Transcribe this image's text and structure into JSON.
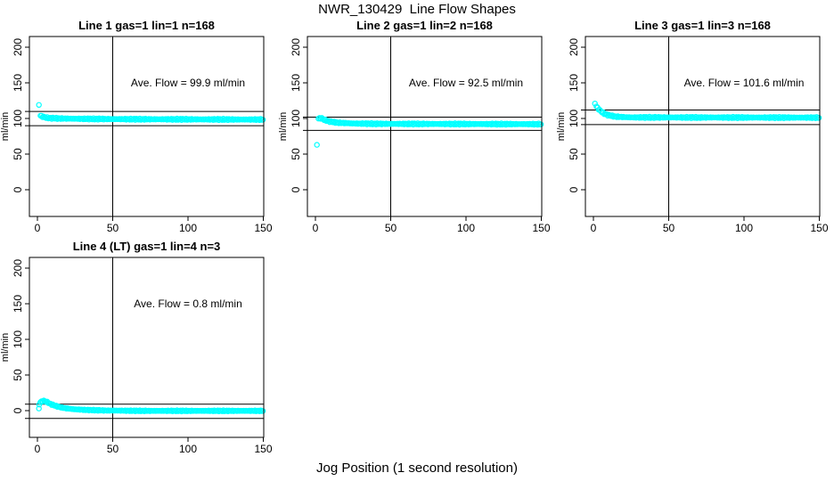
{
  "figure": {
    "title": "NWR_130429  Line Flow Shapes",
    "xlabel": "Jog Position (1 second resolution)",
    "point_color": "#00ffff",
    "line_color": "#000000"
  },
  "chart_data": [
    {
      "type": "scatter",
      "title": "Line 1 gas=1 lin=1 n=168",
      "annotation": "Ave. Flow =  99.9  ml/min",
      "ave_flow_ml_min": 99.9,
      "ylabel": "ml/min",
      "xticks": [
        0,
        50,
        100,
        150
      ],
      "yticks": [
        0,
        50,
        100,
        150,
        200
      ],
      "xlim": [
        -5,
        151
      ],
      "ylim": [
        -38,
        217
      ],
      "vline_x": 50,
      "hlines_y": [
        109.9,
        89.9
      ],
      "isolated_points": [
        [
          1,
          119
        ]
      ],
      "band_points": [
        [
          2,
          104
        ],
        [
          3,
          103
        ],
        [
          5,
          101.5
        ],
        [
          8,
          100.5
        ],
        [
          15,
          100
        ],
        [
          30,
          99.5
        ],
        [
          60,
          99
        ],
        [
          150,
          98.5
        ]
      ],
      "band_step": 0.75,
      "band_jitter": 1.3
    },
    {
      "type": "scatter",
      "title": "Line 2 gas=1 lin=2 n=168",
      "annotation": "Ave. Flow =  92.5  ml/min",
      "ave_flow_ml_min": 92.5,
      "ylabel": "ml/min",
      "xticks": [
        0,
        50,
        100,
        150
      ],
      "yticks": [
        0,
        50,
        100,
        150,
        200
      ],
      "xlim": [
        -5,
        151
      ],
      "ylim": [
        -38,
        217
      ],
      "vline_x": 50,
      "hlines_y": [
        101.8,
        83.3
      ],
      "isolated_points": [
        [
          1,
          63
        ]
      ],
      "band_points": [
        [
          2,
          100
        ],
        [
          4,
          100.5
        ],
        [
          6,
          98
        ],
        [
          10,
          95.5
        ],
        [
          15,
          94
        ],
        [
          25,
          93
        ],
        [
          40,
          92.5
        ],
        [
          150,
          92
        ]
      ],
      "band_step": 0.75,
      "band_jitter": 1.3
    },
    {
      "type": "scatter",
      "title": "Line 3 gas=1 lin=3 n=168",
      "annotation": "Ave. Flow =  101.6  ml/min",
      "ave_flow_ml_min": 101.6,
      "ylabel": "ml/min",
      "xticks": [
        0,
        50,
        100,
        150
      ],
      "yticks": [
        0,
        50,
        100,
        150,
        200
      ],
      "xlim": [
        -5,
        151
      ],
      "ylim": [
        -38,
        217
      ],
      "vline_x": 50,
      "hlines_y": [
        111.8,
        91.4
      ],
      "isolated_points": [
        [
          1,
          121
        ]
      ],
      "band_points": [
        [
          2,
          117
        ],
        [
          3,
          114
        ],
        [
          5,
          110
        ],
        [
          7,
          107
        ],
        [
          10,
          104.5
        ],
        [
          15,
          102.5
        ],
        [
          25,
          101.5
        ],
        [
          150,
          101.2
        ]
      ],
      "band_step": 0.75,
      "band_jitter": 1.3
    },
    {
      "type": "scatter",
      "title": "Line 4 (LT) gas=1 lin=4 n=3",
      "annotation": "Ave. Flow =  0.8  ml/min",
      "ave_flow_ml_min": 0.8,
      "ylabel": "ml/min",
      "xticks": [
        0,
        50,
        100,
        150
      ],
      "yticks": [
        0,
        50,
        100,
        150,
        200
      ],
      "xlim": [
        -5,
        151
      ],
      "ylim": [
        -38,
        217
      ],
      "vline_x": 50,
      "hlines_y": [
        9,
        -11
      ],
      "isolated_points": [
        [
          1,
          3
        ],
        [
          1.2,
          8.5
        ]
      ],
      "band_points": [
        [
          2,
          12
        ],
        [
          4,
          14
        ],
        [
          6,
          12.5
        ],
        [
          9,
          9
        ],
        [
          13,
          6
        ],
        [
          18,
          3.5
        ],
        [
          24,
          2
        ],
        [
          32,
          1
        ],
        [
          45,
          0.2
        ],
        [
          70,
          -0.3
        ],
        [
          150,
          -0.3
        ]
      ],
      "band_step": 0.75,
      "band_jitter": 1.0
    }
  ]
}
